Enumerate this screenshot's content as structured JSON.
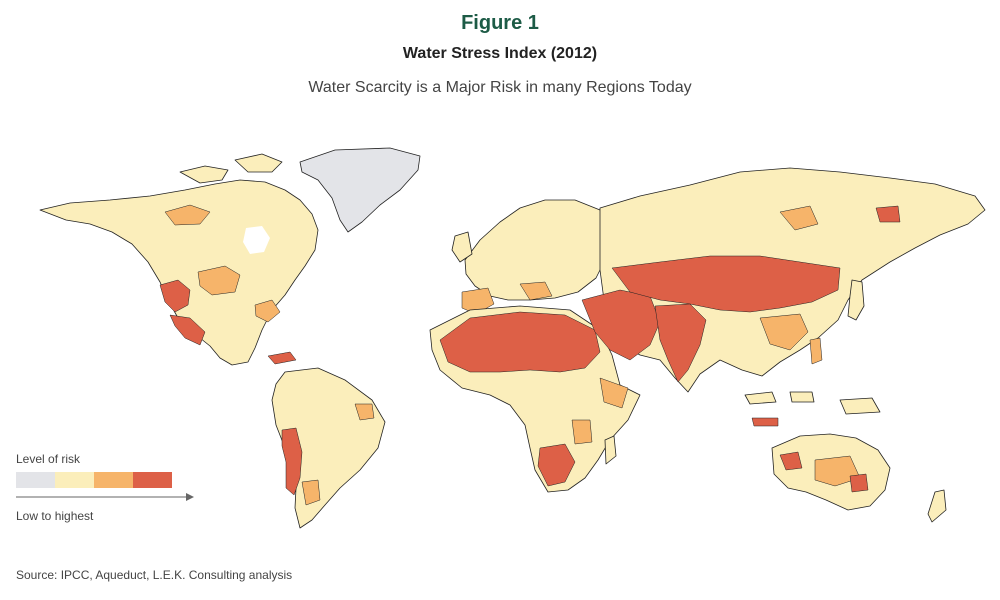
{
  "header": {
    "figure_label": "Figure 1",
    "title": "Water Stress Index (2012)",
    "subtitle": "Water Scarcity is a Major Risk in many Regions Today"
  },
  "legend": {
    "title": "Level of risk",
    "levels": [
      "#e3e4e8",
      "#fbeebb",
      "#f6b46a",
      "#dd6047"
    ],
    "bottom_label": "Low to highest"
  },
  "map": {
    "colors": {
      "nodata": "#e3e4e8",
      "low": "#fbeebb",
      "medium": "#f6b46a",
      "high": "#dd6047",
      "border": "#222222"
    }
  },
  "footer": {
    "source": "Source: IPCC, Aqueduct, L.E.K. Consulting analysis"
  }
}
